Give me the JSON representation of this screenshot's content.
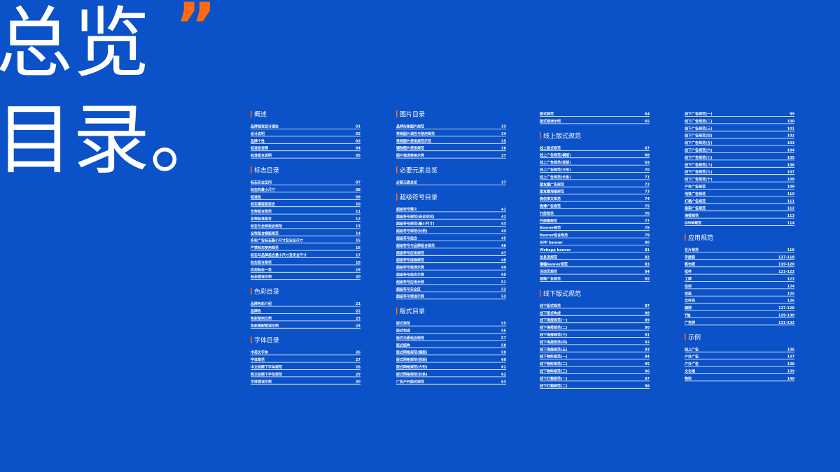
{
  "title_line1": "总览",
  "quote": "”",
  "title_line2": "目录。",
  "columns": [
    {
      "blocks": [
        {
          "heading": "概述",
          "entries": [
            {
              "label": "品牌视觉设计理念",
              "page": "01"
            },
            {
              "label": "设计说明",
              "page": "02"
            },
            {
              "label": "品牌个性",
              "page": "03"
            },
            {
              "label": "标准色说明",
              "page": "04"
            },
            {
              "label": "标准组合说明",
              "page": "05"
            }
          ]
        },
        {
          "heading": "标志目录",
          "entries": [
            {
              "label": "标志安全空间",
              "page": "07"
            },
            {
              "label": "标志的最小尺寸",
              "page": "08"
            },
            {
              "label": "标准色",
              "page": "09"
            },
            {
              "label": "标志横竖版组合",
              "page": "10"
            },
            {
              "label": "全称组合规范",
              "page": "11"
            },
            {
              "label": "全称标准组合",
              "page": "12"
            },
            {
              "label": "标志与全称组合规范",
              "page": "13"
            },
            {
              "label": "全称组合横版规范",
              "page": "14"
            },
            {
              "label": "多彩广告标志最小尺寸及安全尺寸",
              "page": "15"
            },
            {
              "label": "严禁标志使用规范",
              "page": "16"
            },
            {
              "label": "标志与品牌组合最小尺寸及安全尺寸",
              "page": "17"
            },
            {
              "label": "标志组合规范",
              "page": "18"
            },
            {
              "label": "应用标志一览",
              "page": "19"
            },
            {
              "label": "标志错误示例",
              "page": "20"
            }
          ]
        },
        {
          "heading": "色彩目录",
          "entries": [
            {
              "label": "品牌色彩介绍",
              "page": "21"
            },
            {
              "label": "品牌色",
              "page": "22"
            },
            {
              "label": "色彩使用比例",
              "page": "23"
            },
            {
              "label": "色彩搭配错误示例",
              "page": "24"
            }
          ]
        },
        {
          "heading": "字体目录",
          "entries": [
            {
              "label": "中英文字体",
              "page": "26"
            },
            {
              "label": "字体规范",
              "page": "27"
            },
            {
              "label": "中文标题下字体规范",
              "page": "28"
            },
            {
              "label": "英文标题下字体规范",
              "page": "29"
            },
            {
              "label": "字体错误示例",
              "page": "30"
            }
          ]
        }
      ]
    },
    {
      "blocks": [
        {
          "heading": "图片目录",
          "entries": [
            {
              "label": "品牌形象图片规范",
              "page": "33"
            },
            {
              "label": "常规图片调性与使用规范",
              "page": "34"
            },
            {
              "label": "常规图片使用规范示范",
              "page": "35"
            },
            {
              "label": "辅助图片使用规范",
              "page": "36"
            },
            {
              "label": "图片错误使用示例",
              "page": "37"
            }
          ]
        },
        {
          "heading": "必要元素总览",
          "entries": [
            {
              "label": "必要元素总览",
              "page": "37"
            }
          ]
        },
        {
          "heading": "超级符号目录",
          "entries": [
            {
              "label": "超级符号释义",
              "page": "41"
            },
            {
              "label": "超级符号规范(安全空间)",
              "page": "42"
            },
            {
              "label": "超级符号规范(最小尺寸)",
              "page": "43"
            },
            {
              "label": "超级符号规范(比例)",
              "page": "44"
            },
            {
              "label": "超级符号组合",
              "page": "45"
            },
            {
              "label": "超级符号与品牌组合规范",
              "page": "46"
            },
            {
              "label": "超级符号应用规范",
              "page": "47"
            },
            {
              "label": "超级符号延展规范",
              "page": "48"
            },
            {
              "label": "超级符号错误示例",
              "page": "49"
            },
            {
              "label": "超级符号组合示例",
              "page": "50"
            },
            {
              "label": "超级符号应用示例",
              "page": "51"
            },
            {
              "label": "超级符号安全区",
              "page": "52"
            },
            {
              "label": "超级符号错误示例",
              "page": "53"
            }
          ]
        },
        {
          "heading": "版式目录",
          "entries": [
            {
              "label": "版式规范",
              "page": "55"
            },
            {
              "label": "版式构成",
              "page": "56"
            },
            {
              "label": "版式元素组合规范",
              "page": "57"
            },
            {
              "label": "版式结构",
              "page": "58"
            },
            {
              "label": "版式网格规范(横版)",
              "page": "59"
            },
            {
              "label": "版式网格规范(竖版)",
              "page": "60"
            },
            {
              "label": "版式网格规范(方形)",
              "page": "61"
            },
            {
              "label": "版式网格规范(长条)",
              "page": "62"
            },
            {
              "label": "广告户外版式规范",
              "page": "63"
            }
          ]
        }
      ]
    },
    {
      "blocks": [
        {
          "entries": [
            {
              "label": "版式规范",
              "page": "64"
            },
            {
              "label": "版式错误示例",
              "page": "65"
            }
          ]
        },
        {
          "heading": "线上版式规范",
          "entries": [
            {
              "label": "线上版式规范",
              "page": "67"
            },
            {
              "label": "线上广告规范(横版)",
              "page": "68"
            },
            {
              "label": "线上广告规范(竖版)",
              "page": "69"
            },
            {
              "label": "线上广告规范(方形)",
              "page": "70"
            },
            {
              "label": "线上广告规范(长条)",
              "page": "71"
            },
            {
              "label": "朋友圈广告规范",
              "page": "72"
            },
            {
              "label": "朋友圈海报规范",
              "page": "73"
            },
            {
              "label": "微信推文规范",
              "page": "74"
            },
            {
              "label": "微博广告规范",
              "page": "75"
            },
            {
              "label": "开屏规范",
              "page": "76"
            },
            {
              "label": "开屏图规范",
              "page": "77"
            },
            {
              "label": "Banner规范",
              "page": "78"
            },
            {
              "label": "Banner组合规范",
              "page": "79"
            },
            {
              "label": "APP banner",
              "page": "80"
            },
            {
              "label": "Webapp banner",
              "page": "81"
            },
            {
              "label": "信息流规范",
              "page": "82"
            },
            {
              "label": "横幅banner规范",
              "page": "83"
            },
            {
              "label": "活动页规范",
              "page": "84"
            },
            {
              "label": "视频广告规范",
              "page": "85"
            }
          ]
        },
        {
          "heading": "线下版式规范",
          "entries": [
            {
              "label": "线下版式规范",
              "page": "87"
            },
            {
              "label": "线下版式构成",
              "page": "88"
            },
            {
              "label": "线下海报规范(一)",
              "page": "89"
            },
            {
              "label": "线下海报规范(二)",
              "page": "90"
            },
            {
              "label": "线下海报规范(三)",
              "page": "91"
            },
            {
              "label": "线下海报规范(四)",
              "page": "92"
            },
            {
              "label": "线下海报规范(五)",
              "page": "93"
            },
            {
              "label": "线下物料规范(一)",
              "page": "94"
            },
            {
              "label": "线下物料规范(二)",
              "page": "95"
            },
            {
              "label": "线下物料规范(三)",
              "page": "96"
            },
            {
              "label": "线下灯箱规范(一)",
              "page": "97"
            },
            {
              "label": "线下灯箱规范(二)",
              "page": "98"
            }
          ]
        }
      ]
    },
    {
      "blocks": [
        {
          "entries": [
            {
              "label": "线下广告规范(一)",
              "page": "99"
            },
            {
              "label": "线下广告规范(二)",
              "page": "100"
            },
            {
              "label": "线下广告规范(三)",
              "page": "101"
            },
            {
              "label": "线下广告规范(四)",
              "page": "102"
            },
            {
              "label": "线下广告规范(五)",
              "page": "103"
            },
            {
              "label": "线下广告规范(六)",
              "page": "104"
            },
            {
              "label": "线下广告规范(七)",
              "page": "105"
            },
            {
              "label": "线下广告规范(八)",
              "page": "106"
            },
            {
              "label": "线下广告规范(九)",
              "page": "107"
            },
            {
              "label": "线下广告规范(十)",
              "page": "108"
            },
            {
              "label": "户外广告规范",
              "page": "109"
            },
            {
              "label": "地铁广告规范",
              "page": "110"
            },
            {
              "label": "灯箱广告规范",
              "page": "111"
            },
            {
              "label": "展架广告规范",
              "page": "112"
            },
            {
              "label": "海报规范",
              "page": "113"
            },
            {
              "label": "DM单规范",
              "page": "114"
            }
          ]
        },
        {
          "heading": "应用规范",
          "entries": [
            {
              "label": "名片规范",
              "page": "116"
            },
            {
              "label": "手提袋",
              "page": "117-118"
            },
            {
              "label": "帆布袋",
              "page": "119-120"
            },
            {
              "label": "纸杯",
              "page": "121-122"
            },
            {
              "label": "工牌",
              "page": "123"
            },
            {
              "label": "信封",
              "page": "124"
            },
            {
              "label": "信纸",
              "page": "125"
            },
            {
              "label": "文件夹",
              "page": "126"
            },
            {
              "label": "胸牌",
              "page": "127-128"
            },
            {
              "label": "T恤",
              "page": "129-130"
            },
            {
              "label": "广告牌",
              "page": "131-132"
            }
          ]
        },
        {
          "heading": "示例",
          "entries": [
            {
              "label": "线上广告",
              "page": "136"
            },
            {
              "label": "户外广告",
              "page": "137"
            },
            {
              "label": "户外广告",
              "page": "138"
            },
            {
              "label": "文化墙",
              "page": "139"
            },
            {
              "label": "物料",
              "page": "140"
            }
          ]
        }
      ]
    }
  ]
}
